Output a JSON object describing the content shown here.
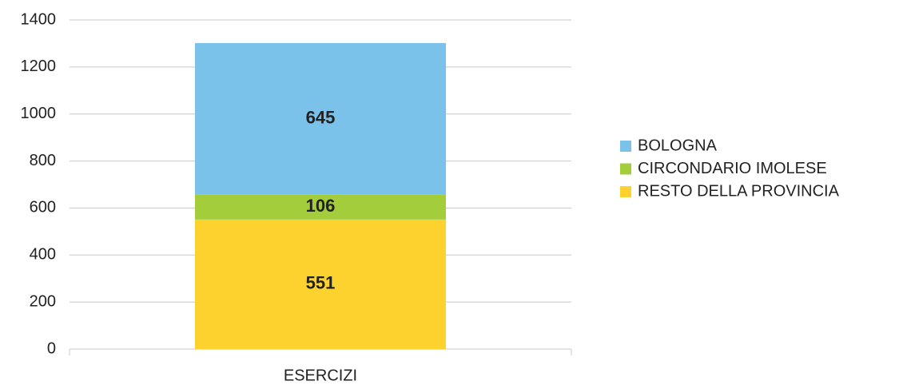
{
  "chart_data": {
    "type": "stacked_bar",
    "categories": [
      "ESERCIZI"
    ],
    "series": [
      {
        "name": "BOLOGNA",
        "color": "#7ac2ea",
        "values": [
          645
        ]
      },
      {
        "name": "CIRCONDARIO IMOLESE",
        "color": "#a3cd3b",
        "values": [
          106
        ]
      },
      {
        "name": "RESTO DELLA PROVINCIA",
        "color": "#fdd22f",
        "values": [
          551
        ]
      }
    ],
    "ylim": [
      0,
      1400
    ],
    "yticks": [
      0,
      200,
      400,
      600,
      800,
      1000,
      1200,
      1400
    ],
    "grid": true,
    "legend": "right"
  }
}
